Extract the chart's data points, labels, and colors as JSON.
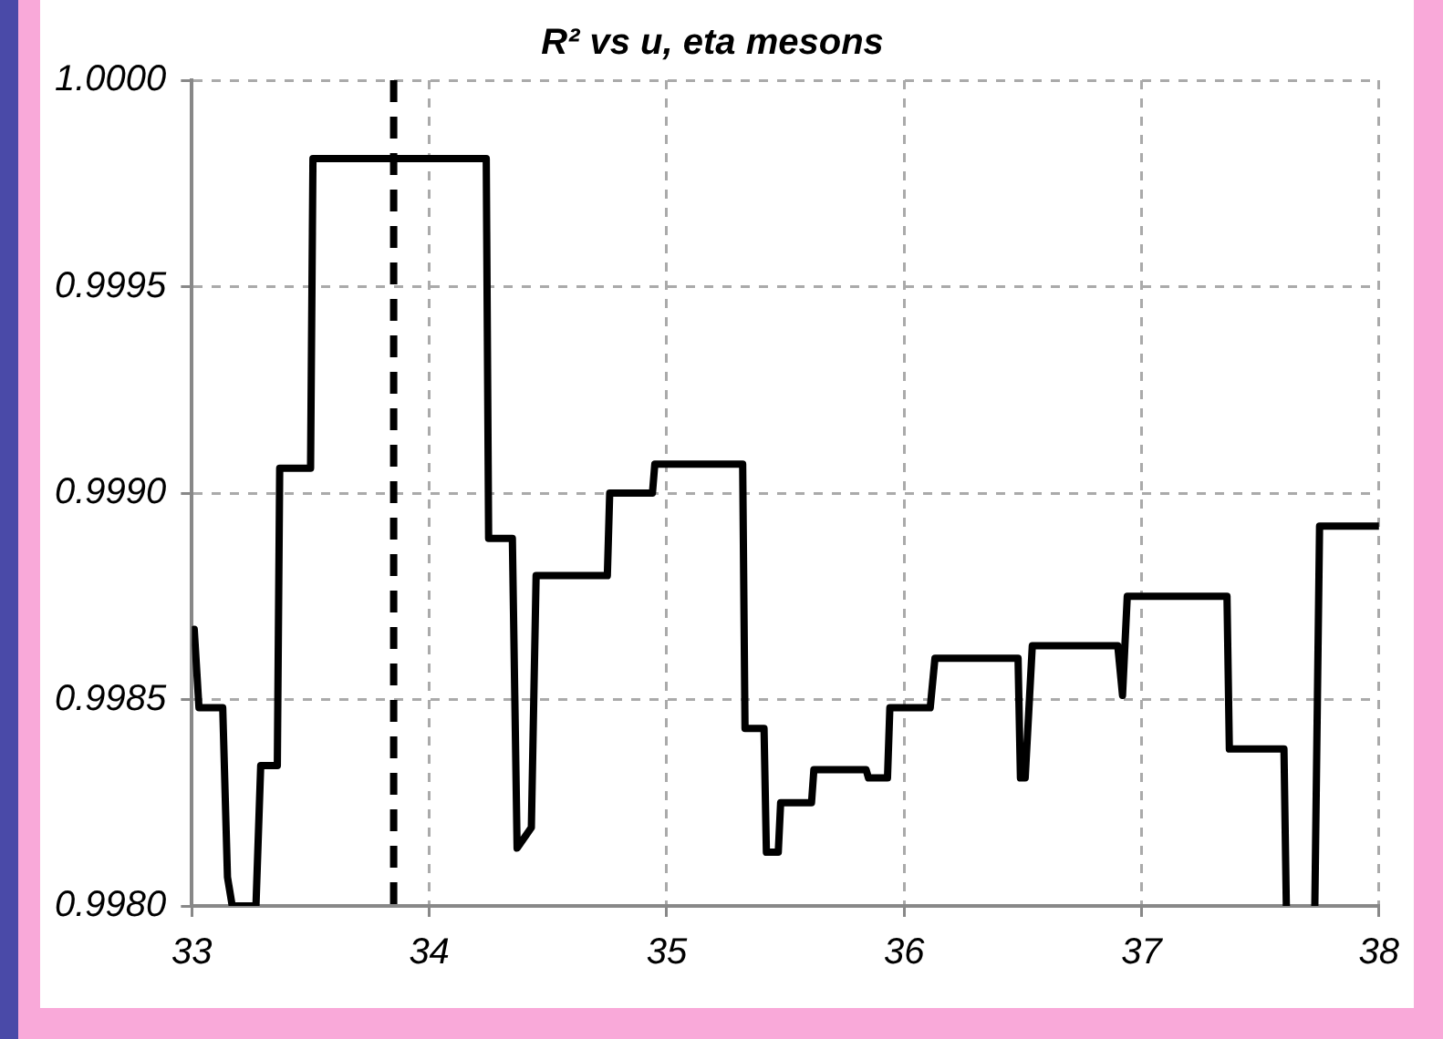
{
  "chart_data": {
    "type": "line",
    "title": "R² vs u, eta mesons",
    "x": [
      33.01,
      33.03,
      33.13,
      33.15,
      33.17,
      33.27,
      33.29,
      33.36,
      33.37,
      33.5,
      33.51,
      34.24,
      34.25,
      34.35,
      34.37,
      34.43,
      34.45,
      34.75,
      34.76,
      34.94,
      34.95,
      35.32,
      35.33,
      35.41,
      35.42,
      35.47,
      35.48,
      35.61,
      35.62,
      35.84,
      35.85,
      35.93,
      35.94,
      36.11,
      36.13,
      36.48,
      36.49,
      36.51,
      36.54,
      36.9,
      36.92,
      36.94,
      37.36,
      37.37,
      37.6,
      37.61,
      37.62,
      37.73,
      37.75,
      38.0
    ],
    "series": [
      {
        "color": "#000000",
        "values": [
          0.99867,
          0.99848,
          0.99848,
          0.99807,
          0.998,
          0.998,
          0.99834,
          0.99834,
          0.99906,
          0.99906,
          0.99981,
          0.99981,
          0.99889,
          0.99889,
          0.99814,
          0.99819,
          0.9988,
          0.9988,
          0.999,
          0.999,
          0.99907,
          0.99907,
          0.99843,
          0.99843,
          0.99813,
          0.99813,
          0.99825,
          0.99825,
          0.99833,
          0.99833,
          0.99831,
          0.99831,
          0.99848,
          0.99848,
          0.9986,
          0.9986,
          0.99831,
          0.99831,
          0.99863,
          0.99863,
          0.99851,
          0.99875,
          0.99875,
          0.99838,
          0.99838,
          0.998,
          null,
          0.998,
          0.99892,
          0.99892
        ]
      }
    ],
    "xlim": [
      33,
      38
    ],
    "xticks": [
      33,
      34,
      35,
      36,
      37,
      38
    ],
    "ylim": [
      0.998,
      1.0
    ],
    "yticks": [
      {
        "value": 0.998,
        "label": "0.9980"
      },
      {
        "value": 0.9985,
        "label": "0.9985"
      },
      {
        "value": 0.999,
        "label": "0.9990"
      },
      {
        "value": 0.9995,
        "label": "0.9995"
      },
      {
        "value": 1.0,
        "label": "1.0000"
      }
    ],
    "ref_lines": [
      {
        "axis": "x",
        "value": 33.85,
        "color": "#000000",
        "line_style": "dashed"
      }
    ],
    "grid": true,
    "marker": "none",
    "line_style": "solid"
  }
}
